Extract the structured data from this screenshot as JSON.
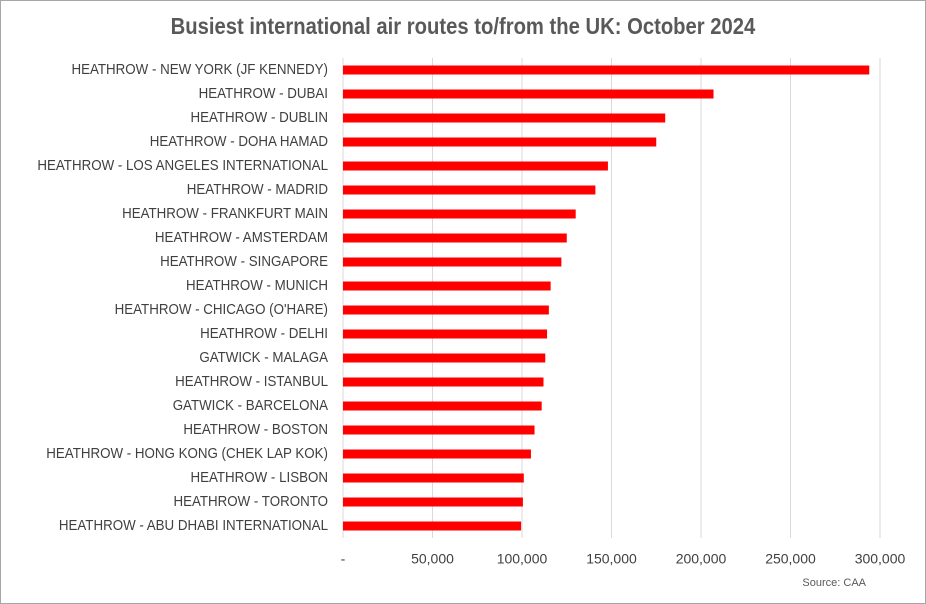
{
  "chart_data": {
    "type": "barh",
    "title": "Busiest international air routes to/from the UK: October 2024",
    "source": "Source: CAA",
    "categories": [
      "HEATHROW - NEW YORK (JF KENNEDY)",
      "HEATHROW - DUBAI",
      "HEATHROW - DUBLIN",
      "HEATHROW - DOHA HAMAD",
      "HEATHROW - LOS ANGELES INTERNATIONAL",
      "HEATHROW - MADRID",
      "HEATHROW - FRANKFURT MAIN",
      "HEATHROW - AMSTERDAM",
      "HEATHROW - SINGAPORE",
      "HEATHROW - MUNICH",
      "HEATHROW - CHICAGO (O'HARE)",
      "HEATHROW - DELHI",
      "GATWICK - MALAGA",
      "HEATHROW - ISTANBUL",
      "GATWICK - BARCELONA",
      "HEATHROW - BOSTON",
      "HEATHROW - HONG KONG (CHEK LAP KOK)",
      "HEATHROW - LISBON",
      "HEATHROW - TORONTO",
      "HEATHROW - ABU DHABI INTERNATIONAL"
    ],
    "values": [
      294000,
      207000,
      180000,
      175000,
      148000,
      141000,
      130000,
      125000,
      122000,
      116000,
      115000,
      114000,
      113000,
      112000,
      111000,
      107000,
      105000,
      101000,
      100500,
      99500
    ],
    "color": "#ff0000",
    "xlim": [
      0,
      300000
    ],
    "xticks": [
      {
        "value": 0,
        "label": "-"
      },
      {
        "value": 50000,
        "label": "50,000"
      },
      {
        "value": 100000,
        "label": "100,000"
      },
      {
        "value": 150000,
        "label": "150,000"
      },
      {
        "value": 200000,
        "label": "200,000"
      },
      {
        "value": 250000,
        "label": "250,000"
      },
      {
        "value": 300000,
        "label": "300,000"
      }
    ],
    "grid": true
  }
}
